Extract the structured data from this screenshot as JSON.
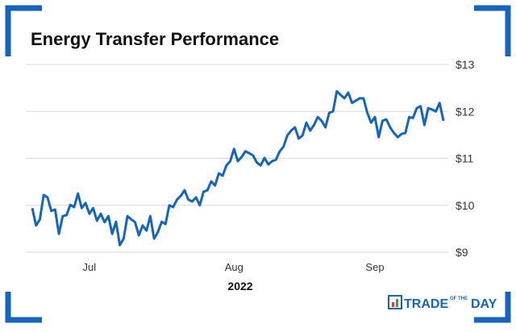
{
  "chart_data": {
    "type": "line",
    "title": "Energy Transfer Performance",
    "xlabel": "2022",
    "categories": [
      null,
      null,
      null,
      null,
      null,
      null,
      null,
      null,
      null,
      null,
      null,
      null,
      null,
      null,
      null,
      "Jul",
      null,
      null,
      null,
      null,
      null,
      null,
      null,
      null,
      null,
      null,
      null,
      null,
      null,
      null,
      null,
      null,
      null,
      null,
      null,
      null,
      null,
      null,
      null,
      null,
      null,
      null,
      null,
      null,
      null,
      null,
      null,
      null,
      null,
      null,
      null,
      null,
      null,
      "Aug",
      null,
      null,
      null,
      null,
      null,
      null,
      null,
      null,
      null,
      null,
      null,
      null,
      null,
      null,
      null,
      null,
      null,
      null,
      null,
      null,
      null,
      null,
      null,
      null,
      null,
      null,
      null,
      null,
      null,
      null,
      null,
      null,
      null,
      null,
      null,
      null,
      "Sep",
      null,
      null,
      null,
      null,
      null,
      null,
      null,
      null,
      null,
      null,
      null,
      null,
      null,
      null,
      null,
      null,
      null,
      null
    ],
    "series": [
      {
        "name": "Energy Transfer",
        "color": "#1565c0",
        "values": [
          9.94,
          9.57,
          9.7,
          10.22,
          10.17,
          9.88,
          9.91,
          9.39,
          9.77,
          9.79,
          10.01,
          9.96,
          10.25,
          9.94,
          10.05,
          9.82,
          9.94,
          9.67,
          9.82,
          9.64,
          9.77,
          9.39,
          9.65,
          9.15,
          9.29,
          9.77,
          9.7,
          9.64,
          9.36,
          9.57,
          9.46,
          9.77,
          9.29,
          9.43,
          9.65,
          9.6,
          10.0,
          9.96,
          10.12,
          10.2,
          10.32,
          10.12,
          10.08,
          10.17,
          10.0,
          10.29,
          10.32,
          10.51,
          10.42,
          10.68,
          10.63,
          10.85,
          10.94,
          11.2,
          10.94,
          11.03,
          11.15,
          11.11,
          11.06,
          10.91,
          10.85,
          11.01,
          10.87,
          10.94,
          10.97,
          11.15,
          11.25,
          11.49,
          11.59,
          11.66,
          11.42,
          11.49,
          11.76,
          11.59,
          11.71,
          11.88,
          11.8,
          11.66,
          11.97,
          12.0,
          12.43,
          12.35,
          12.28,
          12.4,
          12.18,
          12.23,
          12.28,
          12.28,
          11.97,
          11.76,
          11.88,
          11.45,
          11.8,
          11.83,
          11.66,
          11.54,
          11.45,
          11.52,
          11.54,
          11.88,
          11.86,
          12.07,
          12.11,
          11.71,
          12.07,
          12.04,
          12.0,
          12.18,
          11.8
        ]
      }
    ],
    "ylim": [
      9,
      13
    ],
    "yticks": [
      {
        "value": 9,
        "label": "$9"
      },
      {
        "value": 10,
        "label": "$10"
      },
      {
        "value": 11,
        "label": "$11"
      },
      {
        "value": 12,
        "label": "$12"
      },
      {
        "value": 13,
        "label": "$13"
      }
    ],
    "grid": true
  },
  "logo": {
    "word1": "TRADE",
    "word2": "OF THE",
    "word3": "DAY"
  }
}
